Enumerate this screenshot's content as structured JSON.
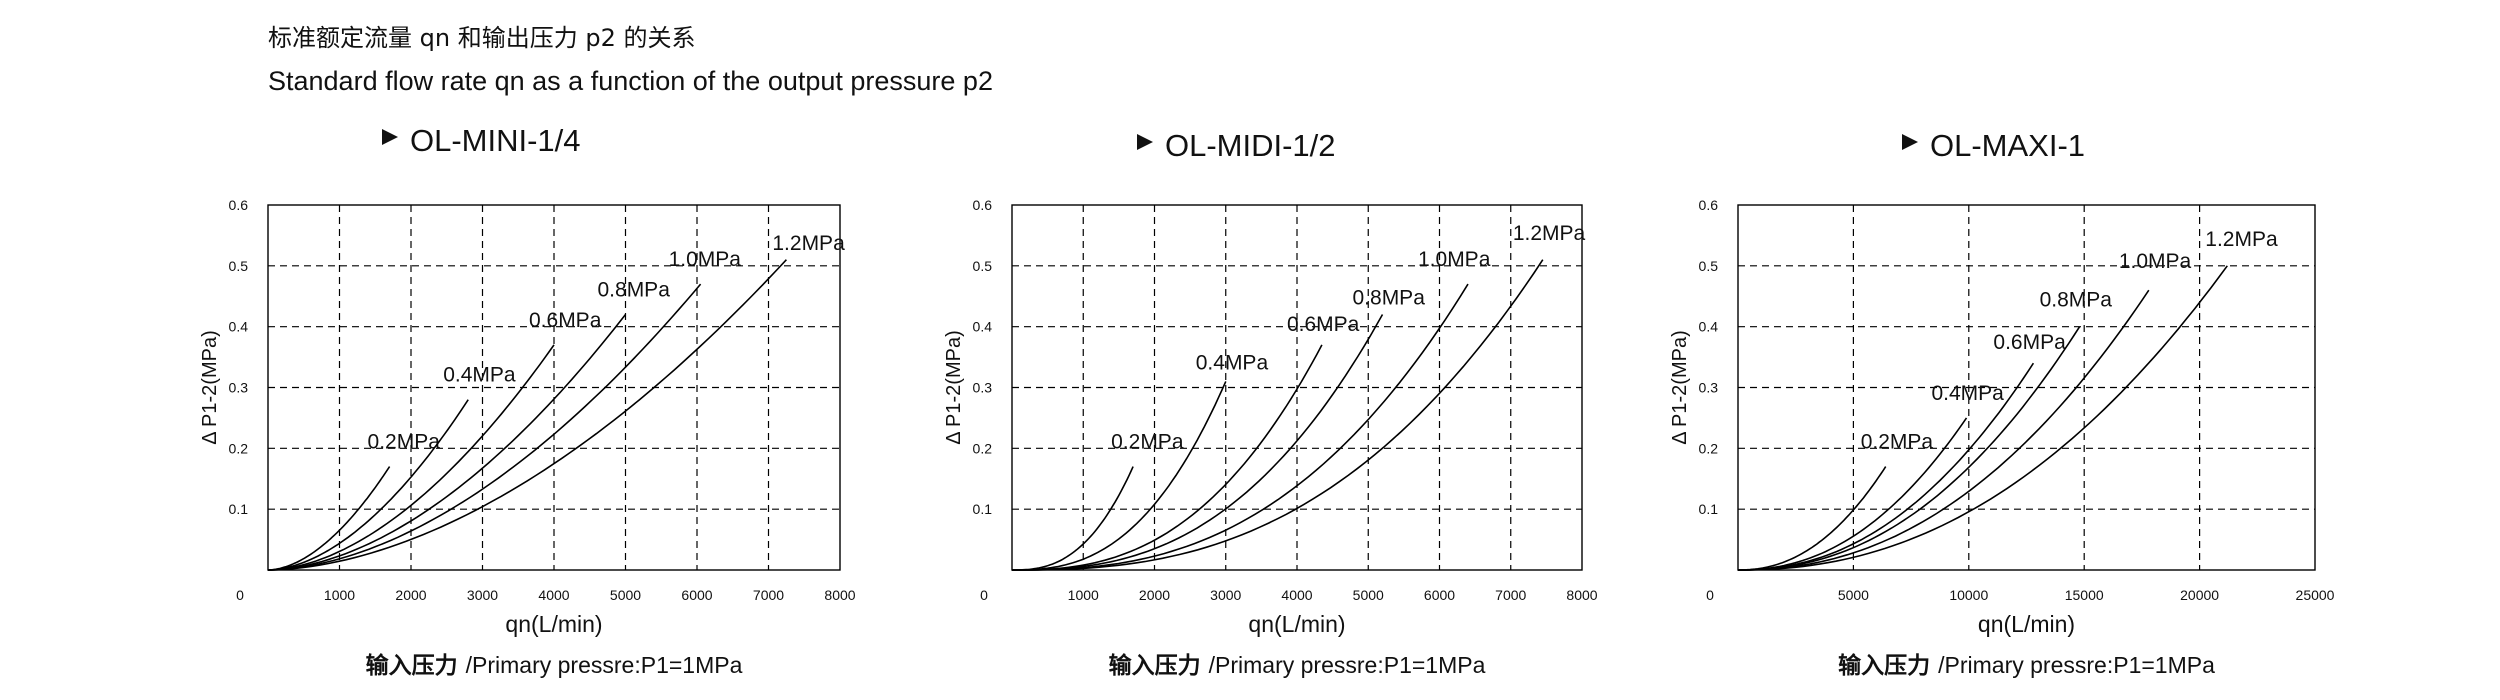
{
  "header": {
    "title_cn": "标准额定流量 qn 和输出压力 p2 的关系",
    "title_en": "Standard flow rate qn as a function of the output pressure p2"
  },
  "colors": {
    "line": "#000000",
    "grid": "#000000",
    "text": "#111111"
  },
  "chart_data": [
    {
      "type": "line",
      "title": "OL-MINI-1/4",
      "xlabel": "qn(L/min)",
      "ylabel": "Δ P1-2(MPa)",
      "caption_cn": "输入压力",
      "caption_en": "/Primary pressre:P1=1MPa",
      "xlim": [
        0,
        8000
      ],
      "ylim": [
        0,
        0.6
      ],
      "xticks": [
        0,
        1000,
        2000,
        3000,
        4000,
        5000,
        6000,
        7000,
        8000
      ],
      "yticks": [
        0.1,
        0.2,
        0.3,
        0.4,
        0.5,
        0.6
      ],
      "grid": "dashed",
      "series": [
        {
          "name": "0.2MPa",
          "x": [
            0,
            1700
          ],
          "y": [
            0,
            0.17
          ],
          "shape": 1.8
        },
        {
          "name": "0.4MPa",
          "x": [
            0,
            2800
          ],
          "y": [
            0,
            0.28
          ],
          "shape": 1.8
        },
        {
          "name": "0.6MPa",
          "x": [
            0,
            4000
          ],
          "y": [
            0,
            0.37
          ],
          "shape": 1.8
        },
        {
          "name": "0.8MPa",
          "x": [
            0,
            5000
          ],
          "y": [
            0,
            0.42
          ],
          "shape": 1.8
        },
        {
          "name": "1.0MPa",
          "x": [
            0,
            6050
          ],
          "y": [
            0,
            0.47
          ],
          "shape": 1.8
        },
        {
          "name": "1.2MPa",
          "x": [
            0,
            7250
          ],
          "y": [
            0,
            0.51
          ],
          "shape": 1.8
        }
      ]
    },
    {
      "type": "line",
      "title": "OL-MIDI-1/2",
      "xlabel": "qn(L/min)",
      "ylabel": "Δ P1-2(MPa)",
      "caption_cn": "输入压力",
      "caption_en": "/Primary pressre:P1=1MPa",
      "xlim": [
        0,
        8000
      ],
      "ylim": [
        0,
        0.6
      ],
      "xticks": [
        0,
        1000,
        2000,
        3000,
        4000,
        5000,
        6000,
        7000,
        8000
      ],
      "yticks": [
        0.1,
        0.2,
        0.3,
        0.4,
        0.5,
        0.6
      ],
      "grid": "dashed",
      "series": [
        {
          "name": "0.2MPa",
          "x": [
            0,
            1700
          ],
          "y": [
            0,
            0.17
          ],
          "shape": 2.6
        },
        {
          "name": "0.4MPa",
          "x": [
            0,
            3000
          ],
          "y": [
            0,
            0.31
          ],
          "shape": 2.6
        },
        {
          "name": "0.6MPa",
          "x": [
            0,
            4350
          ],
          "y": [
            0,
            0.37
          ],
          "shape": 2.6
        },
        {
          "name": "0.8MPa",
          "x": [
            0,
            5200
          ],
          "y": [
            0,
            0.42
          ],
          "shape": 2.6
        },
        {
          "name": "1.0MPa",
          "x": [
            0,
            6400
          ],
          "y": [
            0,
            0.47
          ],
          "shape": 2.6
        },
        {
          "name": "1.2MPa",
          "x": [
            0,
            7450
          ],
          "y": [
            0,
            0.51
          ],
          "shape": 2.6
        }
      ]
    },
    {
      "type": "line",
      "title": "OL-MAXI-1",
      "xlabel": "qn(L/min)",
      "ylabel": "Δ P1-2(MPa)",
      "caption_cn": "输入压力",
      "caption_en": "/Primary pressre:P1=1MPa",
      "xlim": [
        0,
        25000
      ],
      "ylim": [
        0,
        0.6
      ],
      "xticks": [
        0,
        5000,
        10000,
        15000,
        20000,
        25000
      ],
      "yticks": [
        0.1,
        0.2,
        0.3,
        0.4,
        0.5,
        0.6
      ],
      "grid": "dashed",
      "series": [
        {
          "name": "0.2MPa",
          "x": [
            0,
            6400
          ],
          "y": [
            0,
            0.17
          ],
          "shape": 2.2
        },
        {
          "name": "0.4MPa",
          "x": [
            0,
            9900
          ],
          "y": [
            0,
            0.25
          ],
          "shape": 2.2
        },
        {
          "name": "0.6MPa",
          "x": [
            0,
            12800
          ],
          "y": [
            0,
            0.34
          ],
          "shape": 2.2
        },
        {
          "name": "0.8MPa",
          "x": [
            0,
            14800
          ],
          "y": [
            0,
            0.4
          ],
          "shape": 2.2
        },
        {
          "name": "1.0MPa",
          "x": [
            0,
            17800
          ],
          "y": [
            0,
            0.46
          ],
          "shape": 2.2
        },
        {
          "name": "1.2MPa",
          "x": [
            0,
            21200
          ],
          "y": [
            0,
            0.5
          ],
          "shape": 2.2
        }
      ]
    }
  ]
}
